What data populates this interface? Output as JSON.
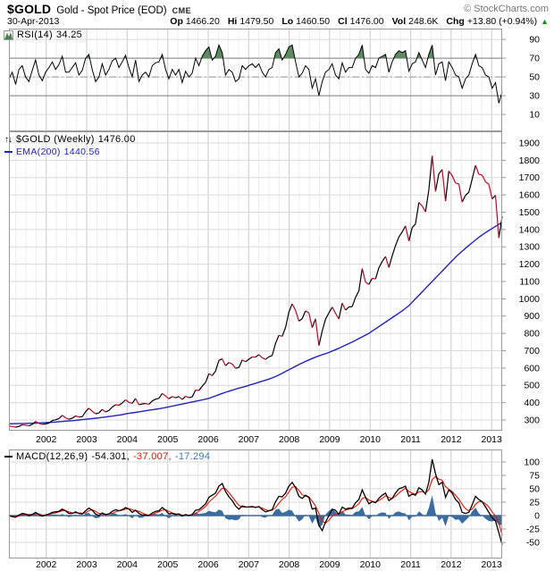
{
  "header": {
    "symbol": "$GOLD",
    "name": "Gold - Spot Price (EOD)",
    "exchange": "CME",
    "copyright": "© StockCharts.com",
    "date": "30-Apr-2013",
    "quote": [
      {
        "label": "Op",
        "value": "1466.20"
      },
      {
        "label": "Hi",
        "value": "1479.50"
      },
      {
        "label": "Lo",
        "value": "1460.50"
      },
      {
        "label": "Cl",
        "value": "1476.00"
      },
      {
        "label": "Vol",
        "value": "248.6K"
      },
      {
        "label": "Chg",
        "value": "+13.80 (+0.94%)"
      }
    ],
    "chg_arrow": "▲"
  },
  "legends": {
    "rsi": {
      "label": "RSI(14)",
      "value": "34.25"
    },
    "price": {
      "arrows": "↑↓",
      "label": "$GOLD (Weekly)",
      "value": "1476.00"
    },
    "ema": {
      "label": "EMA(200)",
      "value": "1440.56"
    },
    "macd": {
      "label": "MACD(12,26,9)",
      "values": [
        "-54.301,",
        "-37.007,",
        "-17.294"
      ]
    }
  },
  "colors": {
    "price_up": "#000000",
    "price_down": "#cc0022",
    "ema": "#2222bb",
    "macd_line": "#000000",
    "signal": "#ee1100",
    "hist": "#3a6ca0",
    "rsi_line": "#000000",
    "rsi_fill": "#5d8a60",
    "grid_minor": "#ececec",
    "grid_year": "#c9c9c9",
    "grid_h": "#dadada",
    "border": "#999999",
    "hline": "#808080",
    "hline_dash": "#9a9a9a",
    "chg_up": "#0b9a0b"
  },
  "x_axis": {
    "start": 2001.08,
    "end": 2013.26,
    "years": [
      2002,
      2003,
      2004,
      2005,
      2006,
      2007,
      2008,
      2009,
      2010,
      2011,
      2012,
      2013
    ]
  },
  "chart_data": [
    {
      "panel": "rsi",
      "type": "line",
      "name": "RSI(14)",
      "current": 34.25,
      "x_start": 2001.0,
      "x_step_months": 1,
      "ylim": [
        -8,
        101.5
      ],
      "yticks": [
        90,
        70,
        50,
        30,
        10
      ],
      "hlines": [
        {
          "value": 70,
          "style": "solid"
        },
        {
          "value": 50,
          "style": "dashdot"
        },
        {
          "value": 30,
          "style": "solid"
        }
      ],
      "fill_above": 70,
      "values": [
        48,
        55,
        42,
        58,
        62,
        50,
        45,
        57,
        68,
        52,
        46,
        55,
        60,
        66,
        58,
        63,
        72,
        55,
        55,
        60,
        65,
        52,
        57,
        70,
        74,
        58,
        45,
        50,
        64,
        52,
        58,
        67,
        70,
        60,
        66,
        73,
        60,
        50,
        68,
        45,
        52,
        55,
        50,
        62,
        65,
        66,
        74,
        58,
        48,
        58,
        52,
        58,
        44,
        56,
        50,
        54,
        70,
        62,
        72,
        78,
        82,
        68,
        72,
        84,
        76,
        52,
        58,
        55,
        45,
        48,
        62,
        58,
        62,
        64,
        60,
        64,
        55,
        50,
        58,
        60,
        76,
        80,
        68,
        74,
        82,
        84,
        66,
        50,
        54,
        62,
        58,
        38,
        48,
        30,
        45,
        55,
        58,
        64,
        52,
        48,
        65,
        55,
        60,
        60,
        70,
        74,
        84,
        58,
        54,
        62,
        60,
        70,
        72,
        74,
        55,
        66,
        74,
        78,
        76,
        78,
        56,
        64,
        66,
        76,
        68,
        60,
        74,
        84,
        52,
        64,
        66,
        46,
        66,
        60,
        52,
        50,
        38,
        48,
        52,
        64,
        74,
        62,
        60,
        52,
        50,
        38,
        44,
        22,
        34.25
      ]
    },
    {
      "panel": "price",
      "type": "line",
      "name": "$GOLD (Weekly)",
      "current": 1476.0,
      "x_start": 2001.0,
      "x_step_months": 1,
      "ylim": [
        238,
        1967
      ],
      "yticks": [
        1900,
        1800,
        1700,
        1600,
        1500,
        1400,
        1300,
        1200,
        1100,
        1000,
        900,
        800,
        700,
        600,
        500,
        400,
        300
      ],
      "series": [
        {
          "name": "$GOLD close",
          "style": "updown",
          "values": [
            265,
            262,
            258,
            263,
            272,
            270,
            266,
            274,
            291,
            280,
            275,
            277,
            282,
            297,
            301,
            308,
            327,
            313,
            304,
            310,
            323,
            317,
            319,
            348,
            368,
            350,
            336,
            340,
            361,
            346,
            355,
            375,
            388,
            385,
            398,
            416,
            402,
            396,
            424,
            388,
            393,
            395,
            391,
            410,
            420,
            425,
            453,
            438,
            422,
            435,
            428,
            435,
            418,
            437,
            429,
            433,
            473,
            470,
            495,
            517,
            568,
            556,
            582,
            644,
            653,
            613,
            632,
            623,
            599,
            603,
            647,
            636,
            651,
            664,
            663,
            677,
            659,
            650,
            665,
            672,
            743,
            789,
            783,
            834,
            923,
            971,
            933,
            871,
            885,
            930,
            918,
            833,
            884,
            730,
            814,
            882,
            919,
            952,
            916,
            883,
            975,
            934,
            953,
            955,
            1008,
            1045,
            1175,
            1096,
            1083,
            1118,
            1115,
            1179,
            1215,
            1244,
            1181,
            1248,
            1307,
            1357,
            1386,
            1421,
            1333,
            1411,
            1432,
            1556,
            1536,
            1502,
            1628,
            1826,
            1620,
            1722,
            1746,
            1564,
            1738,
            1711,
            1668,
            1664,
            1558,
            1598,
            1615,
            1691,
            1771,
            1719,
            1714,
            1676,
            1661,
            1577,
            1598,
            1352,
            1476
          ]
        },
        {
          "name": "EMA(200)",
          "style": "line",
          "current": 1440.56,
          "values": [
            278,
            278,
            279,
            279,
            280,
            280,
            281,
            281,
            282,
            283,
            284,
            285,
            286,
            287,
            288,
            290,
            291,
            293,
            294,
            296,
            298,
            300,
            302,
            304,
            306,
            308,
            310,
            312,
            315,
            317,
            320,
            322,
            325,
            328,
            331,
            335,
            338,
            341,
            344,
            347,
            350,
            353,
            356,
            359,
            362,
            365,
            368,
            372,
            376,
            380,
            384,
            388,
            392,
            396,
            400,
            404,
            408,
            412,
            416,
            420,
            425,
            432,
            439,
            446,
            453,
            460,
            466,
            472,
            478,
            484,
            489,
            494,
            500,
            506,
            512,
            518,
            524,
            530,
            536,
            543,
            551,
            560,
            570,
            580,
            590,
            600,
            610,
            620,
            629,
            638,
            647,
            655,
            663,
            670,
            677,
            683,
            690,
            698,
            706,
            714,
            723,
            732,
            741,
            750,
            760,
            770,
            780,
            790,
            800,
            813,
            826,
            839,
            852,
            865,
            878,
            891,
            904,
            917,
            930,
            945,
            960,
            980,
            1000,
            1020,
            1040,
            1060,
            1080,
            1100,
            1120,
            1140,
            1160,
            1180,
            1200,
            1220,
            1240,
            1258,
            1275,
            1292,
            1308,
            1324,
            1340,
            1355,
            1369,
            1382,
            1394,
            1406,
            1418,
            1430,
            1441
          ]
        }
      ]
    },
    {
      "panel": "macd",
      "type": "line+histogram",
      "name": "MACD(12,26,9)",
      "x_start": 2001.0,
      "x_step_months": 1,
      "current": {
        "macd": -54.301,
        "signal": -37.007,
        "hist": -17.294
      },
      "ylim": [
        -80,
        123.3
      ],
      "yticks": [
        100,
        75,
        50,
        25,
        0,
        -25,
        -50
      ],
      "histogram": "macd_minus_signal",
      "series": [
        {
          "name": "MACD line",
          "values": [
            0,
            -2,
            -3,
            1,
            4,
            3,
            0,
            2,
            6,
            2,
            -1,
            1,
            3,
            6,
            7,
            8,
            12,
            9,
            4,
            4,
            7,
            4,
            3,
            9,
            14,
            10,
            3,
            0,
            5,
            2,
            3,
            8,
            11,
            9,
            11,
            15,
            12,
            6,
            10,
            4,
            1,
            1,
            0,
            5,
            8,
            9,
            15,
            10,
            3,
            4,
            2,
            3,
            -1,
            2,
            0,
            2,
            10,
            11,
            16,
            22,
            34,
            38,
            42,
            55,
            60,
            45,
            35,
            28,
            18,
            12,
            18,
            16,
            16,
            17,
            15,
            17,
            11,
            7,
            9,
            11,
            26,
            36,
            35,
            42,
            55,
            62,
            52,
            36,
            32,
            38,
            34,
            12,
            14,
            -18,
            -28,
            -12,
            0,
            12,
            10,
            2,
            16,
            12,
            14,
            14,
            24,
            30,
            48,
            34,
            22,
            26,
            24,
            32,
            38,
            42,
            28,
            32,
            42,
            50,
            52,
            55,
            36,
            40,
            38,
            52,
            48,
            40,
            62,
            105,
            78,
            58,
            62,
            34,
            48,
            42,
            30,
            24,
            6,
            4,
            6,
            20,
            36,
            30,
            26,
            16,
            6,
            -4,
            -10,
            -32,
            -54.301
          ]
        },
        {
          "name": "Signal line",
          "values": [
            0,
            -1,
            -2,
            -1,
            1,
            2,
            2,
            2,
            3,
            3,
            1,
            1,
            2,
            4,
            5,
            7,
            9,
            9,
            7,
            5,
            5,
            5,
            4,
            5,
            9,
            11,
            8,
            4,
            3,
            2,
            3,
            4,
            7,
            9,
            10,
            12,
            13,
            11,
            9,
            8,
            5,
            2,
            1,
            2,
            5,
            7,
            10,
            11,
            8,
            5,
            3,
            3,
            1,
            1,
            1,
            1,
            4,
            8,
            12,
            17,
            25,
            31,
            36,
            44,
            51,
            50,
            43,
            35,
            27,
            19,
            16,
            16,
            16,
            16,
            16,
            16,
            14,
            11,
            9,
            10,
            15,
            23,
            30,
            35,
            44,
            53,
            54,
            47,
            39,
            36,
            35,
            27,
            18,
            4,
            -10,
            -14,
            -9,
            -1,
            3,
            3,
            7,
            10,
            12,
            13,
            17,
            22,
            32,
            34,
            29,
            27,
            25,
            28,
            32,
            37,
            34,
            32,
            36,
            42,
            47,
            51,
            45,
            42,
            40,
            44,
            45,
            42,
            48,
            67,
            73,
            68,
            66,
            54,
            49,
            45,
            38,
            31,
            21,
            13,
            9,
            12,
            21,
            26,
            26,
            22,
            16,
            7,
            -1,
            -14,
            -37.007
          ]
        }
      ]
    }
  ]
}
